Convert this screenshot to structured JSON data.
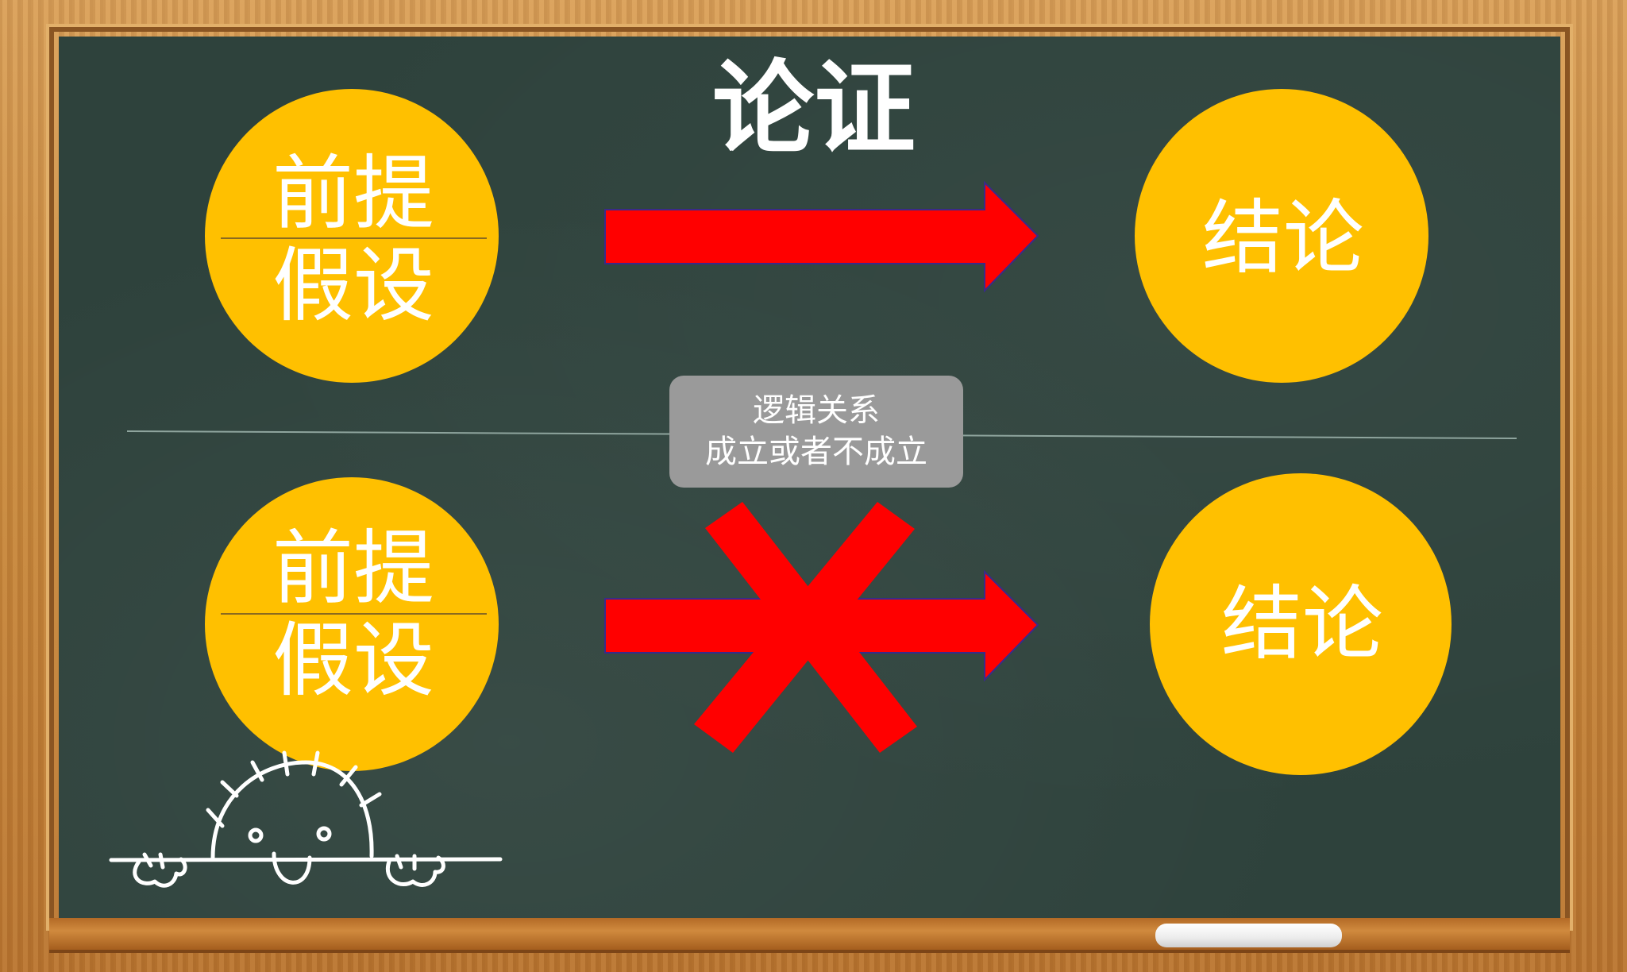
{
  "title": "论证",
  "colors": {
    "board": "#2e423c",
    "circle": "#ffc000",
    "arrow": "#ff0000",
    "callout": "#9a9a9a",
    "text": "#ffffff"
  },
  "top_row": {
    "left_circle": {
      "line1": "前提",
      "line2": "假设"
    },
    "right_circle": {
      "label": "结论"
    },
    "arrow": "right-arrow"
  },
  "bottom_row": {
    "left_circle": {
      "line1": "前提",
      "line2": "假设"
    },
    "right_circle": {
      "label": "结论"
    },
    "arrow": "right-arrow",
    "cross": "x-cross"
  },
  "callout": {
    "line1": "逻辑关系",
    "line2": "成立或者不成立"
  },
  "decoration": "chalk-doodle-face"
}
